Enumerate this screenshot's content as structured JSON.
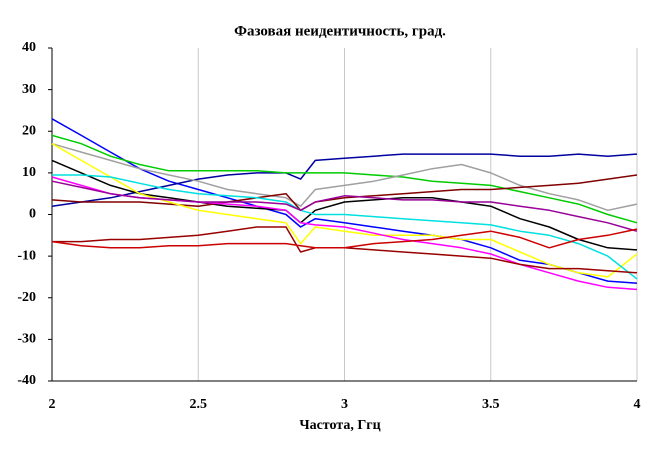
{
  "chart_data": {
    "type": "line",
    "title": "Фазовая неидентичность, град.",
    "x_label": "Частота, Ггц",
    "x": [
      2,
      2.1,
      2.2,
      2.3,
      2.4,
      2.5,
      2.6,
      2.7,
      2.8,
      2.85,
      2.9,
      3,
      3.1,
      3.2,
      3.3,
      3.4,
      3.5,
      3.6,
      3.7,
      3.8,
      3.9,
      4
    ],
    "series": [
      {
        "color": "#0000ff",
        "values": [
          23,
          19,
          15,
          11,
          8,
          6,
          4,
          2,
          0,
          -3,
          -1,
          -2,
          -3,
          -4,
          -5,
          -6,
          -8,
          -11,
          -12,
          -14,
          -16,
          -16.5
        ]
      },
      {
        "color": "#0000a0",
        "values": [
          2,
          3,
          4,
          5.5,
          7,
          8.5,
          9.5,
          10,
          10,
          8.5,
          13,
          13.5,
          14,
          14.5,
          14.5,
          14.5,
          14.5,
          14,
          14,
          14.5,
          14,
          14.5
        ]
      },
      {
        "color": "#00cc00",
        "values": [
          19,
          17,
          14,
          12,
          10.5,
          10.5,
          10.5,
          10.5,
          10,
          10,
          10,
          10,
          9.5,
          9,
          8,
          7.5,
          7,
          5.5,
          4,
          2.5,
          0,
          -2
        ]
      },
      {
        "color": "#a0a0a0",
        "values": [
          17,
          15,
          13,
          11,
          9.5,
          8,
          6,
          5,
          4,
          2,
          6,
          7,
          8,
          9.5,
          11,
          12,
          10,
          7,
          5,
          3.5,
          1,
          2.5
        ]
      },
      {
        "color": "#000000",
        "values": [
          13,
          10,
          7,
          5,
          4,
          3,
          2,
          1.5,
          1,
          -2,
          1,
          3,
          3.5,
          4,
          4,
          3,
          2,
          -1,
          -3,
          -6,
          -8,
          -8.5
        ]
      },
      {
        "color": "#800000",
        "values": [
          3.5,
          3,
          3,
          3,
          2.5,
          2,
          3,
          4,
          5,
          1,
          3,
          4,
          4.5,
          5,
          5.5,
          6,
          6,
          6.5,
          7,
          7.5,
          8.5,
          9.5
        ]
      },
      {
        "color": "#ffff00",
        "values": [
          17,
          13,
          9,
          5,
          3,
          1,
          0,
          -1,
          -2,
          -7,
          -3,
          -4,
          -5,
          -5,
          -5,
          -6,
          -6,
          -9,
          -12,
          -14,
          -15,
          -9.5
        ]
      },
      {
        "color": "#00e0e0",
        "values": [
          9.5,
          9.5,
          9,
          7.5,
          6,
          5,
          4.5,
          4,
          3,
          1,
          0,
          0,
          -0.5,
          -1,
          -1.5,
          -2,
          -2.5,
          -4,
          -5,
          -7,
          -10,
          -15.5
        ]
      },
      {
        "color": "#ff00ff",
        "values": [
          9,
          7,
          5,
          4,
          3.5,
          3,
          2.5,
          2,
          1,
          -2,
          -2.5,
          -3,
          -4.5,
          -6,
          -7,
          -8,
          -9.5,
          -12,
          -14,
          -16,
          -17.5,
          -18
        ]
      },
      {
        "color": "#990099",
        "values": [
          8,
          6.5,
          5,
          4,
          3.5,
          3,
          3,
          3,
          2.5,
          1,
          3,
          4.5,
          4,
          3.5,
          3.5,
          3,
          3,
          2,
          1,
          -0.5,
          -2,
          -4
        ]
      },
      {
        "color": "#990000",
        "values": [
          -6.5,
          -6.5,
          -6,
          -6,
          -5.5,
          -5,
          -4,
          -3,
          -3,
          -9,
          -8,
          -8,
          -8.5,
          -9,
          -9.5,
          -10,
          -10.5,
          -12,
          -13,
          -13,
          -13.5,
          -14
        ]
      },
      {
        "color": "#cc0000",
        "values": [
          -6.5,
          -7.5,
          -8,
          -8,
          -7.5,
          -7.5,
          -7,
          -7,
          -7,
          -7.5,
          -8,
          -8,
          -7,
          -6.5,
          -6,
          -5,
          -4,
          -5.5,
          -8,
          -6,
          -5,
          -3.5
        ]
      }
    ],
    "xlim": [
      2,
      4
    ],
    "xticks": [
      2,
      2.5,
      3,
      3.5,
      4
    ],
    "ylim": [
      -40,
      40
    ],
    "yticks": [
      -40,
      -30,
      -20,
      -10,
      0,
      10,
      20,
      30,
      40
    ],
    "grid": "x"
  }
}
